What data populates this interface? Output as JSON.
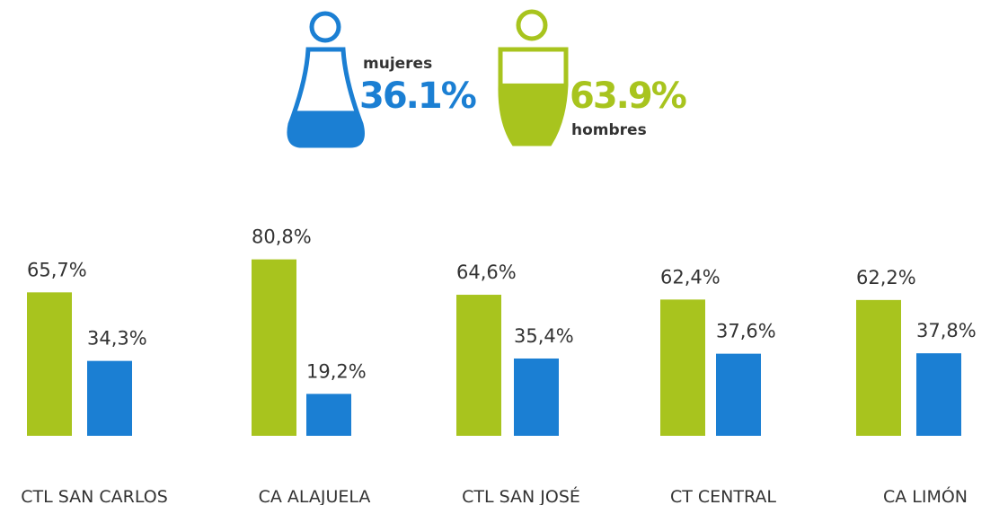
{
  "chart_data": {
    "type": "bar",
    "categories": [
      "CTL SAN CARLOS",
      "CA ALAJUELA",
      "CTL SAN JOSÉ",
      "CT CENTRAL",
      "CA LIMÓN"
    ],
    "series": [
      {
        "name": "hombres",
        "color": "#a8c41e",
        "total": 63.9,
        "total_label": "63.9%",
        "values": [
          65.7,
          80.8,
          64.6,
          62.4,
          62.2
        ],
        "value_labels": [
          "65,7%",
          "80,8%",
          "64,6%",
          "62,4%",
          "62,2%"
        ]
      },
      {
        "name": "mujeres",
        "color": "#1b7fd3",
        "total": 36.1,
        "total_label": "36.1%",
        "values": [
          34.3,
          19.2,
          35.4,
          37.6,
          37.8
        ],
        "value_labels": [
          "34,3%",
          "19,2%",
          "35,4%",
          "37,6%",
          "37,8%"
        ]
      }
    ]
  }
}
